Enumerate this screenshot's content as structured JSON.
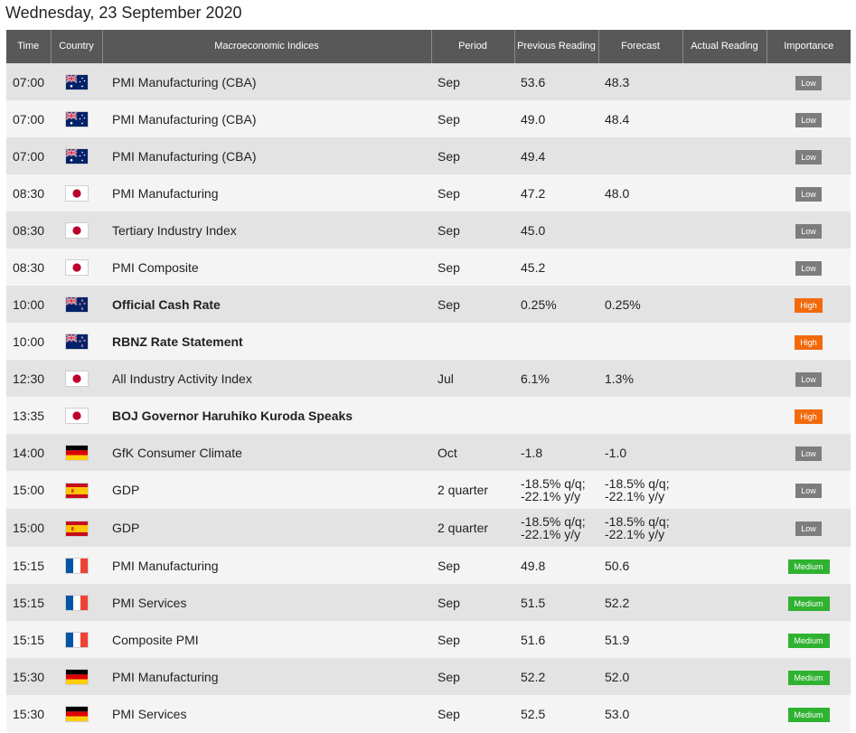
{
  "page": {
    "title": "Wednesday, 23 September 2020"
  },
  "columns": {
    "time": "Time",
    "country": "Country",
    "indices": "Macroeconomic Indices",
    "period": "Period",
    "previous": "Previous Reading",
    "forecast": "Forecast",
    "actual": "Actual Reading",
    "importance": "Importance"
  },
  "importance_colors": {
    "Low": "#7d7d7d",
    "High": "#f26a0c",
    "Medium": "#2fb230"
  },
  "rows": [
    {
      "time": "07:00",
      "flag": "australia-flag-icon",
      "name": "PMI Manufacturing (CBA)",
      "bold": false,
      "period": "Sep",
      "previous": "53.6",
      "forecast": "48.3",
      "actual": "",
      "importance": "Low"
    },
    {
      "time": "07:00",
      "flag": "australia-flag-icon",
      "name": "PMI Manufacturing (CBA)",
      "bold": false,
      "period": "Sep",
      "previous": "49.0",
      "forecast": "48.4",
      "actual": "",
      "importance": "Low"
    },
    {
      "time": "07:00",
      "flag": "australia-flag-icon",
      "name": "PMI Manufacturing (CBA)",
      "bold": false,
      "period": "Sep",
      "previous": "49.4",
      "forecast": "",
      "actual": "",
      "importance": "Low"
    },
    {
      "time": "08:30",
      "flag": "japan-flag-icon",
      "name": "PMI Manufacturing",
      "bold": false,
      "period": "Sep",
      "previous": "47.2",
      "forecast": "48.0",
      "actual": "",
      "importance": "Low"
    },
    {
      "time": "08:30",
      "flag": "japan-flag-icon",
      "name": "Tertiary Industry Index",
      "bold": false,
      "period": "Sep",
      "previous": "45.0",
      "forecast": "",
      "actual": "",
      "importance": "Low"
    },
    {
      "time": "08:30",
      "flag": "japan-flag-icon",
      "name": "PMI Composite",
      "bold": false,
      "period": "Sep",
      "previous": "45.2",
      "forecast": "",
      "actual": "",
      "importance": "Low"
    },
    {
      "time": "10:00",
      "flag": "new-zealand-flag-icon",
      "name": "Official Cash Rate",
      "bold": true,
      "period": "Sep",
      "previous": "0.25%",
      "forecast": "0.25%",
      "actual": "",
      "importance": "High"
    },
    {
      "time": "10:00",
      "flag": "new-zealand-flag-icon",
      "name": "RBNZ Rate Statement",
      "bold": true,
      "period": "",
      "previous": "",
      "forecast": "",
      "actual": "",
      "importance": "High"
    },
    {
      "time": "12:30",
      "flag": "japan-flag-icon",
      "name": "All Industry Activity Index",
      "bold": false,
      "period": "Jul",
      "previous": "6.1%",
      "forecast": "1.3%",
      "actual": "",
      "importance": "Low"
    },
    {
      "time": "13:35",
      "flag": "japan-flag-icon",
      "name": "BOJ Governor Haruhiko Kuroda Speaks",
      "bold": true,
      "period": "",
      "previous": "",
      "forecast": "",
      "actual": "",
      "importance": "High"
    },
    {
      "time": "14:00",
      "flag": "germany-flag-icon",
      "name": "GfK Consumer Climate",
      "bold": false,
      "period": "Oct",
      "previous": "-1.8",
      "forecast": "-1.0",
      "actual": "",
      "importance": "Low"
    },
    {
      "time": "15:00",
      "flag": "spain-flag-icon",
      "name": "GDP",
      "bold": false,
      "period": "2 quarter",
      "previous": "-18.5% q/q;\n-22.1% y/y",
      "forecast": "-18.5% q/q;\n-22.1% y/y",
      "actual": "",
      "importance": "Low"
    },
    {
      "time": "15:00",
      "flag": "spain-flag-icon",
      "name": "GDP",
      "bold": false,
      "period": "2 quarter",
      "previous": "-18.5% q/q;\n-22.1% y/y",
      "forecast": "-18.5% q/q;\n-22.1% y/y",
      "actual": "",
      "importance": "Low"
    },
    {
      "time": "15:15",
      "flag": "france-flag-icon",
      "name": "PMI Manufacturing",
      "bold": false,
      "period": "Sep",
      "previous": "49.8",
      "forecast": "50.6",
      "actual": "",
      "importance": "Medium"
    },
    {
      "time": "15:15",
      "flag": "france-flag-icon",
      "name": "PMI Services",
      "bold": false,
      "period": "Sep",
      "previous": "51.5",
      "forecast": "52.2",
      "actual": "",
      "importance": "Medium"
    },
    {
      "time": "15:15",
      "flag": "france-flag-icon",
      "name": "Composite PMI",
      "bold": false,
      "period": "Sep",
      "previous": "51.6",
      "forecast": "51.9",
      "actual": "",
      "importance": "Medium"
    },
    {
      "time": "15:30",
      "flag": "germany-flag-icon",
      "name": "PMI Manufacturing",
      "bold": false,
      "period": "Sep",
      "previous": "52.2",
      "forecast": "52.0",
      "actual": "",
      "importance": "Medium"
    },
    {
      "time": "15:30",
      "flag": "germany-flag-icon",
      "name": "PMI Services",
      "bold": false,
      "period": "Sep",
      "previous": "52.5",
      "forecast": "53.0",
      "actual": "",
      "importance": "Medium"
    }
  ]
}
